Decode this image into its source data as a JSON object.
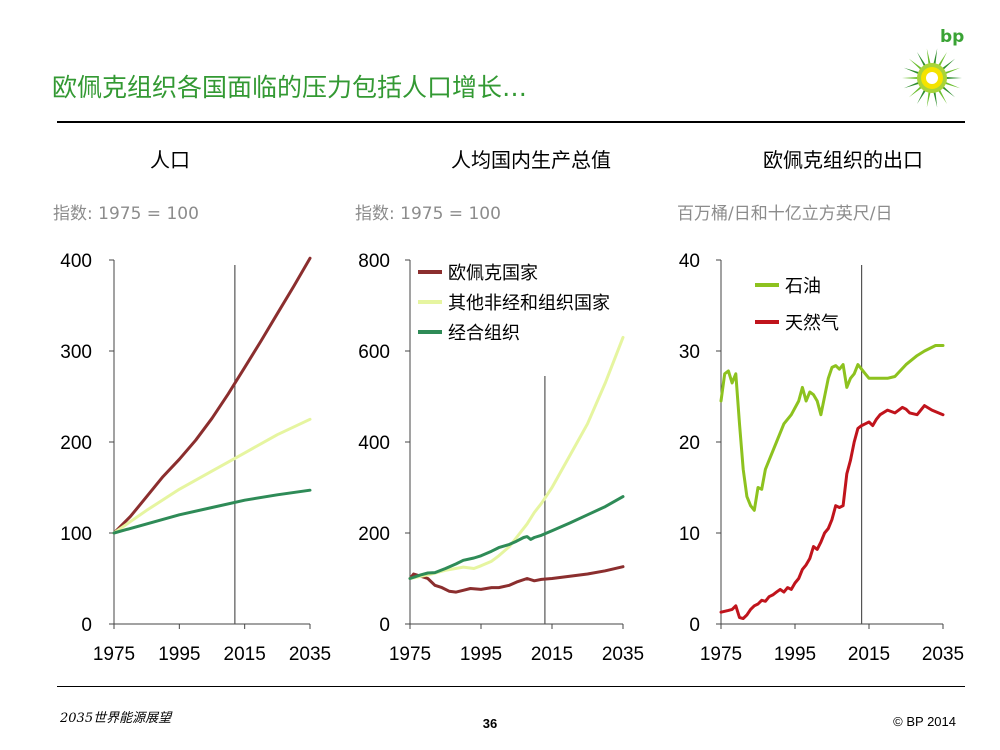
{
  "header": {
    "title": "欧佩克组织各国面临的压力包括人口增长…",
    "logo_text": "bp"
  },
  "colors": {
    "opec": "#8B2E2E",
    "other": "#E6F5A0",
    "oecd": "#2E8B57",
    "oil": "#8DC21F",
    "gas": "#C0141C",
    "accent": "#339933",
    "axis": "#444444"
  },
  "footer": {
    "left": "2035世界能源展望",
    "page": "36",
    "right": "© BP 2014"
  },
  "chart_data": [
    {
      "type": "line",
      "title": "人口",
      "subtitle": "指数: 1975 = 100",
      "xlim": [
        1975,
        2035
      ],
      "ylim": [
        0,
        400
      ],
      "xticks": [
        1975,
        1995,
        2015,
        2035
      ],
      "yticks": [
        0,
        100,
        200,
        300,
        400
      ],
      "xtick_labels": [
        "1975",
        "1995",
        "2015",
        "2035"
      ],
      "ytick_labels": [
        "0",
        "100",
        "200",
        "300",
        "400"
      ],
      "vline": 2012,
      "series": [
        {
          "name": "欧佩克国家",
          "color": "#8B2E2E",
          "x": [
            1975,
            1980,
            1985,
            1990,
            1995,
            2000,
            2005,
            2010,
            2015,
            2020,
            2025,
            2030,
            2035
          ],
          "y": [
            100,
            118,
            140,
            162,
            181,
            202,
            226,
            253,
            282,
            311,
            341,
            371,
            402
          ]
        },
        {
          "name": "其他非经和组织国家",
          "color": "#E6F5A0",
          "x": [
            1975,
            1985,
            1995,
            2005,
            2015,
            2025,
            2035
          ],
          "y": [
            100,
            125,
            148,
            168,
            188,
            208,
            225
          ]
        },
        {
          "name": "经合组织",
          "color": "#2E8B57",
          "x": [
            1975,
            1985,
            1995,
            2005,
            2015,
            2025,
            2035
          ],
          "y": [
            100,
            110,
            120,
            128,
            136,
            142,
            147
          ]
        }
      ]
    },
    {
      "type": "line",
      "title": "人均国内生产总值",
      "subtitle": "指数: 1975 = 100",
      "xlim": [
        1975,
        2035
      ],
      "ylim": [
        0,
        800
      ],
      "xticks": [
        1975,
        1995,
        2015,
        2035
      ],
      "yticks": [
        0,
        200,
        400,
        600,
        800
      ],
      "xtick_labels": [
        "1975",
        "1995",
        "2015",
        "2035"
      ],
      "ytick_labels": [
        "0",
        "200",
        "400",
        "600",
        "800"
      ],
      "vline": 2013,
      "legend": [
        "欧佩克国家",
        "其他非经和组织国家",
        "经合组织"
      ],
      "series": [
        {
          "name": "欧佩克国家",
          "color": "#8B2E2E",
          "x": [
            1975,
            1976,
            1978,
            1980,
            1982,
            1984,
            1986,
            1988,
            1990,
            1992,
            1995,
            1998,
            2000,
            2003,
            2005,
            2008,
            2010,
            2012,
            2015,
            2020,
            2025,
            2030,
            2035
          ],
          "y": [
            100,
            110,
            105,
            100,
            85,
            80,
            72,
            70,
            74,
            78,
            76,
            80,
            80,
            85,
            92,
            100,
            95,
            98,
            100,
            105,
            110,
            117,
            126
          ]
        },
        {
          "name": "其他非经和组织国家",
          "color": "#E6F5A0",
          "x": [
            1975,
            1980,
            1985,
            1990,
            1993,
            1995,
            1998,
            2000,
            2003,
            2005,
            2008,
            2010,
            2012,
            2015,
            2020,
            2025,
            2030,
            2035
          ],
          "y": [
            100,
            108,
            118,
            125,
            122,
            128,
            138,
            150,
            170,
            190,
            220,
            245,
            265,
            300,
            370,
            440,
            530,
            630
          ]
        },
        {
          "name": "经合组织",
          "color": "#2E8B57",
          "x": [
            1975,
            1978,
            1980,
            1982,
            1985,
            1988,
            1990,
            1993,
            1995,
            1998,
            2000,
            2003,
            2005,
            2007,
            2008,
            2009,
            2010,
            2012,
            2015,
            2020,
            2025,
            2030,
            2035
          ],
          "y": [
            100,
            108,
            112,
            113,
            122,
            132,
            140,
            145,
            150,
            160,
            168,
            175,
            182,
            190,
            192,
            186,
            190,
            195,
            205,
            222,
            240,
            258,
            280
          ]
        }
      ]
    },
    {
      "type": "line",
      "title": "欧佩克组织的出口",
      "subtitle": "百万桶/日和十亿立方英尺/日",
      "xlim": [
        1975,
        2035
      ],
      "ylim": [
        0,
        40
      ],
      "xticks": [
        1975,
        1995,
        2015,
        2035
      ],
      "yticks": [
        0,
        10,
        20,
        30,
        40
      ],
      "xtick_labels": [
        "1975",
        "1995",
        "2015",
        "2035"
      ],
      "ytick_labels": [
        "0",
        "10",
        "20",
        "30",
        "40"
      ],
      "vline": 2013,
      "legend": [
        "石油",
        "天然气"
      ],
      "series": [
        {
          "name": "石油",
          "color": "#8DC21F",
          "x": [
            1975,
            1976,
            1977,
            1978,
            1979,
            1980,
            1981,
            1982,
            1983,
            1984,
            1985,
            1986,
            1987,
            1988,
            1990,
            1992,
            1994,
            1996,
            1997,
            1998,
            1999,
            2000,
            2001,
            2002,
            2003,
            2004,
            2005,
            2006,
            2007,
            2008,
            2009,
            2010,
            2011,
            2012,
            2013,
            2014,
            2015,
            2017,
            2020,
            2022,
            2025,
            2028,
            2030,
            2033,
            2035
          ],
          "y": [
            24.5,
            27.5,
            27.8,
            26.5,
            27.5,
            22,
            17,
            14,
            13,
            12.5,
            15,
            14.8,
            17,
            18,
            20,
            22,
            23,
            24.5,
            26,
            24.5,
            25.5,
            25.2,
            24.5,
            23,
            25,
            27,
            28.2,
            28.4,
            28,
            28.5,
            26,
            27,
            27.5,
            28.5,
            28,
            27.5,
            27,
            27,
            27,
            27.2,
            28.5,
            29.5,
            30,
            30.6,
            30.6
          ]
        },
        {
          "name": "天然气",
          "color": "#C0141C",
          "x": [
            1975,
            1977,
            1978,
            1979,
            1980,
            1981,
            1982,
            1983,
            1984,
            1985,
            1986,
            1987,
            1988,
            1989,
            1990,
            1991,
            1992,
            1993,
            1994,
            1995,
            1996,
            1997,
            1998,
            1999,
            2000,
            2001,
            2002,
            2003,
            2004,
            2005,
            2006,
            2007,
            2008,
            2009,
            2010,
            2011,
            2012,
            2013,
            2014,
            2015,
            2016,
            2017,
            2018,
            2020,
            2022,
            2024,
            2025,
            2026,
            2028,
            2030,
            2032,
            2035
          ],
          "y": [
            1.3,
            1.5,
            1.6,
            2,
            0.7,
            0.6,
            1,
            1.6,
            2,
            2.2,
            2.6,
            2.5,
            3,
            3.2,
            3.5,
            3.8,
            3.5,
            4,
            3.8,
            4.5,
            5,
            6,
            6.5,
            7.2,
            8.5,
            8.2,
            9,
            10,
            10.5,
            11.5,
            13,
            12.8,
            13,
            16.5,
            18,
            20,
            21.5,
            21.8,
            22,
            22.2,
            21.8,
            22.5,
            23,
            23.5,
            23.2,
            23.8,
            23.6,
            23.2,
            23,
            24,
            23.5,
            23
          ]
        }
      ]
    }
  ]
}
